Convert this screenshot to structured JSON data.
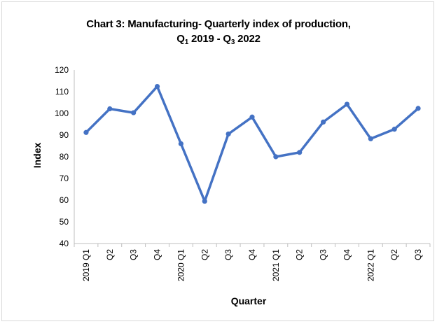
{
  "chart_data": {
    "type": "line",
    "title_main": "Chart 3: Manufacturing- Quarterly index of production,",
    "title_sub": {
      "q_from": "Q",
      "q_from_sub": "1",
      "from_year": "2019 - ",
      "q_to": "Q",
      "q_to_sub": "3",
      "to_year": "2022"
    },
    "xlabel": "Quarter",
    "ylabel": "Index",
    "categories": [
      "2019 Q1",
      "Q2",
      "Q3",
      "Q4",
      "2020 Q1",
      "Q2",
      "Q3",
      "Q4",
      "2021 Q1",
      "Q2",
      "Q3",
      "Q4",
      "2022 Q1",
      "Q2",
      "Q3"
    ],
    "values": [
      91.2,
      102.1,
      100.3,
      112.4,
      86.0,
      59.5,
      90.5,
      98.3,
      80.0,
      82.0,
      96.0,
      104.2,
      88.3,
      92.7,
      102.3
    ],
    "ylim": [
      40,
      120
    ],
    "yticks": [
      40,
      50,
      60,
      70,
      80,
      90,
      100,
      110,
      120
    ],
    "grid": false,
    "legend": "none",
    "line_color": "#4472c4"
  }
}
